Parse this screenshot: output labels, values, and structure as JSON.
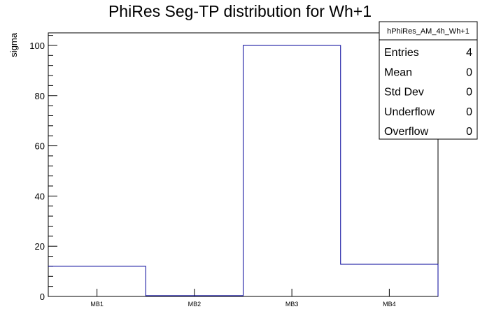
{
  "chart_data": {
    "type": "bar",
    "title": "PhiRes Seg-TP distribution for Wh+1",
    "xlabel": "",
    "ylabel": "sigma",
    "categories": [
      "MB1",
      "MB2",
      "MB3",
      "MB4"
    ],
    "values": [
      12,
      0.3,
      100,
      12.8
    ],
    "ylim": [
      0,
      105
    ],
    "yticks": [
      "0",
      "20",
      "40",
      "60",
      "80",
      "100"
    ],
    "line_color": "#000099",
    "stats": {
      "name": "hPhiRes_AM_4h_Wh+1",
      "rows": [
        {
          "label": "Entries",
          "value": "4"
        },
        {
          "label": "Mean",
          "value": "0"
        },
        {
          "label": "Std Dev",
          "value": "0"
        },
        {
          "label": "Underflow",
          "value": "0"
        },
        {
          "label": "Overflow",
          "value": "0"
        }
      ]
    }
  }
}
